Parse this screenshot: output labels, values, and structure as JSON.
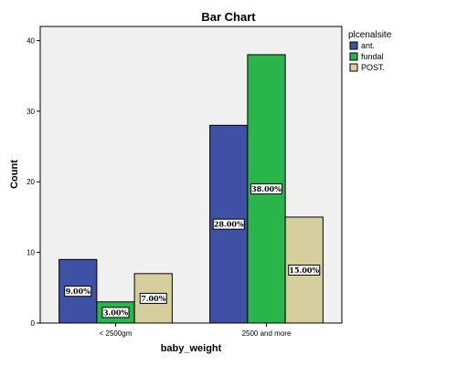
{
  "chart_data": {
    "type": "bar",
    "title": "Bar Chart",
    "xlabel": "baby_weight",
    "ylabel": "Count",
    "categories": [
      "< 2500gm",
      "2500 and more"
    ],
    "series": [
      {
        "name": "ant.",
        "values": [
          9,
          28
        ],
        "labels": [
          "9.00%",
          "28.00%"
        ],
        "color": "#3e51a5"
      },
      {
        "name": "fundal",
        "values": [
          3,
          38
        ],
        "labels": [
          "3.00%",
          "38.00%"
        ],
        "color": "#2ab54a"
      },
      {
        "name": "POST.",
        "values": [
          7,
          15
        ],
        "labels": [
          "7.00%",
          "15.00%"
        ],
        "color": "#d6cf9d"
      }
    ],
    "ylim": [
      0,
      42
    ],
    "yticks": [
      0,
      10,
      20,
      30,
      40
    ],
    "legend": {
      "title": "plcenalsite",
      "position": "right"
    },
    "grid": false,
    "plot_background": "#f0f0f0"
  }
}
